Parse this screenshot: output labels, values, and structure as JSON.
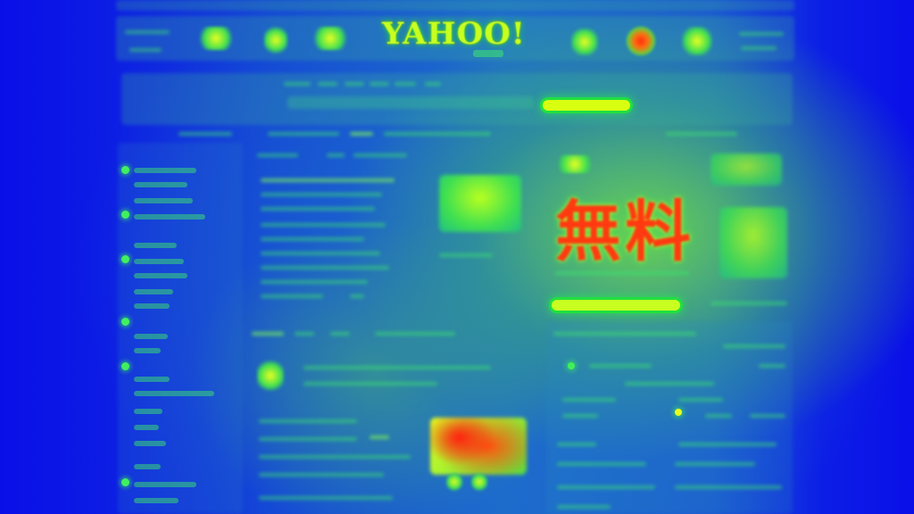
{
  "header": {
    "logo_text": "YAHOO!"
  },
  "ad": {
    "chars": [
      "無",
      "料"
    ]
  },
  "colors": {
    "background": "#0a10e6",
    "hot": "#ff2a10",
    "warm": "#d8ff10",
    "mid": "#40e050"
  }
}
